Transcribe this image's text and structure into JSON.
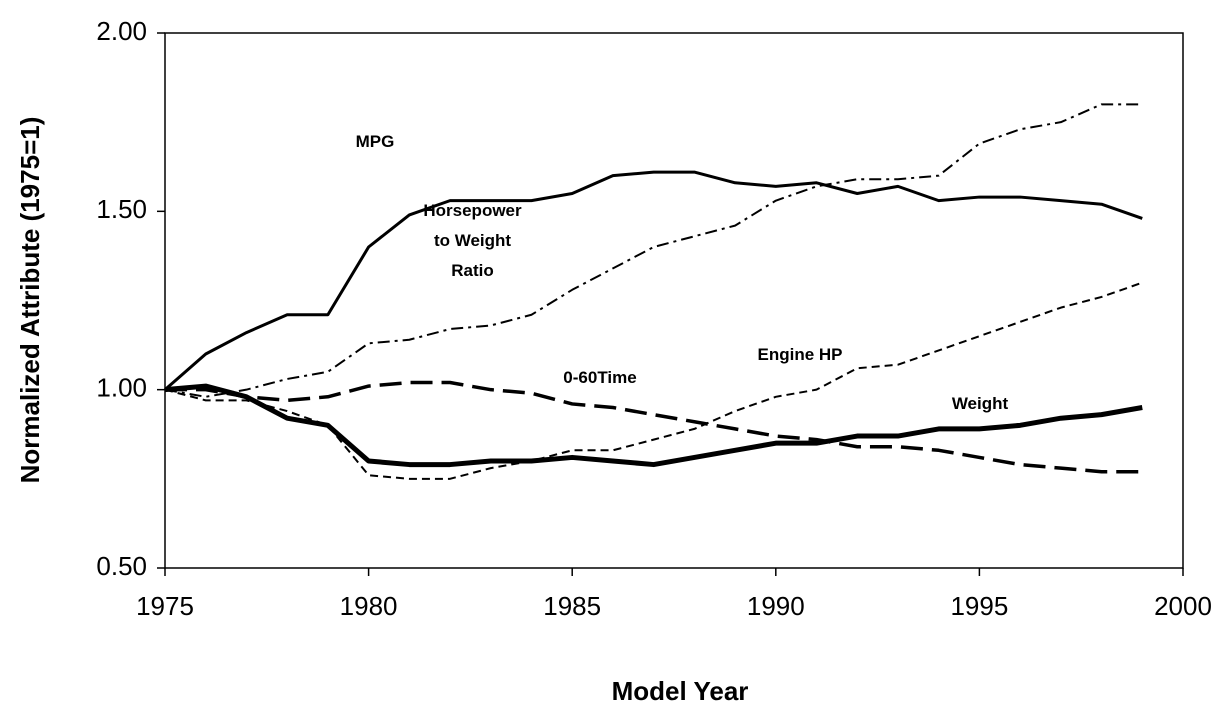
{
  "chart_data": {
    "type": "line",
    "x_label": "Model Year",
    "y_label": "Normalized Attribute (1975=1)",
    "x": [
      1975,
      1976,
      1977,
      1978,
      1979,
      1980,
      1981,
      1982,
      1983,
      1984,
      1985,
      1986,
      1987,
      1988,
      1989,
      1990,
      1991,
      1992,
      1993,
      1994,
      1995,
      1996,
      1997,
      1998,
      1999
    ],
    "series": [
      {
        "name": "MPG",
        "color": "#000000",
        "style": "solid",
        "values": [
          1.0,
          1.1,
          1.16,
          1.21,
          1.21,
          1.4,
          1.49,
          1.53,
          1.53,
          1.53,
          1.55,
          1.6,
          1.61,
          1.61,
          1.58,
          1.57,
          1.58,
          1.55,
          1.57,
          1.53,
          1.54,
          1.54,
          1.53,
          1.52,
          1.48
        ]
      },
      {
        "name": "Horsepower to Weight Ratio",
        "color": "#000000",
        "style": "dashdot",
        "values": [
          1.0,
          0.98,
          1.0,
          1.03,
          1.05,
          1.13,
          1.14,
          1.17,
          1.18,
          1.21,
          1.28,
          1.34,
          1.4,
          1.43,
          1.46,
          1.53,
          1.57,
          1.59,
          1.59,
          1.6,
          1.69,
          1.73,
          1.75,
          1.8,
          1.8
        ]
      },
      {
        "name": "Engine HP",
        "color": "#000000",
        "style": "dash",
        "values": [
          1.0,
          0.97,
          0.97,
          0.94,
          0.9,
          0.76,
          0.75,
          0.75,
          0.78,
          0.8,
          0.83,
          0.83,
          0.86,
          0.89,
          0.94,
          0.98,
          1.0,
          1.06,
          1.07,
          1.11,
          1.15,
          1.19,
          1.23,
          1.26,
          1.3
        ]
      },
      {
        "name": "0-60Time",
        "color": "#000000",
        "style": "longdash",
        "values": [
          1.0,
          1.0,
          0.98,
          0.97,
          0.98,
          1.01,
          1.02,
          1.02,
          1.0,
          0.99,
          0.96,
          0.95,
          0.93,
          0.91,
          0.89,
          0.87,
          0.86,
          0.84,
          0.84,
          0.83,
          0.81,
          0.79,
          0.78,
          0.77,
          0.77
        ]
      },
      {
        "name": "Weight",
        "color": "#000000",
        "style": "thick",
        "values": [
          1.0,
          1.01,
          0.98,
          0.92,
          0.9,
          0.8,
          0.79,
          0.79,
          0.8,
          0.8,
          0.81,
          0.8,
          0.79,
          0.81,
          0.83,
          0.85,
          0.85,
          0.87,
          0.87,
          0.89,
          0.89,
          0.9,
          0.92,
          0.93,
          0.95
        ]
      }
    ],
    "xlim": [
      1975,
      2000
    ],
    "xticks": [
      1975,
      1980,
      1985,
      1990,
      1995,
      2000
    ],
    "ylim": [
      0.5,
      2
    ],
    "yticks": [
      {
        "value": 0.5,
        "label": "0.50"
      },
      {
        "value": 1,
        "label": "1.00"
      },
      {
        "value": 1.5,
        "label": "1.50"
      },
      {
        "value": 2,
        "label": "2.00"
      }
    ],
    "grid": false
  }
}
